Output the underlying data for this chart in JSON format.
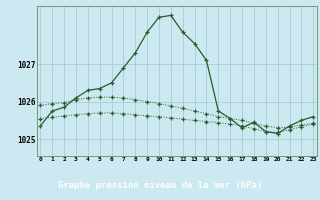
{
  "title": "Graphe pression niveau de la mer (hPa)",
  "background_color": "#cce8f0",
  "plot_bg_color": "#cce8f0",
  "grid_color": "#aaccd8",
  "line_color": "#2d5a2d",
  "footer_bg": "#3a6b3a",
  "footer_text_color": "#ffffff",
  "x_ticks": [
    0,
    1,
    2,
    3,
    4,
    5,
    6,
    7,
    8,
    9,
    10,
    11,
    12,
    13,
    14,
    15,
    16,
    17,
    18,
    19,
    20,
    21,
    22,
    23
  ],
  "y_ticks": [
    1025,
    1026,
    1027
  ],
  "ylim": [
    1024.55,
    1028.55
  ],
  "xlim": [
    -0.3,
    23.3
  ],
  "line1_x": [
    0,
    1,
    2,
    3,
    4,
    5,
    6,
    7,
    8,
    9,
    10,
    11,
    12,
    13,
    14,
    15,
    16,
    17,
    18,
    19,
    20,
    21,
    22,
    23
  ],
  "line1_y": [
    1025.35,
    1025.75,
    1025.85,
    1026.1,
    1026.3,
    1026.35,
    1026.5,
    1026.9,
    1027.3,
    1027.85,
    1028.25,
    1028.3,
    1027.85,
    1027.55,
    1027.1,
    1025.75,
    1025.55,
    1025.3,
    1025.45,
    1025.2,
    1025.15,
    1025.35,
    1025.5,
    1025.6
  ],
  "line2_x": [
    0,
    1,
    2,
    3,
    4,
    5,
    6,
    7,
    8,
    9,
    10,
    11,
    12,
    13,
    14,
    15,
    16,
    17,
    18,
    19,
    20,
    21,
    22,
    23
  ],
  "line2_y": [
    1025.9,
    1025.95,
    1025.97,
    1026.05,
    1026.1,
    1026.12,
    1026.12,
    1026.1,
    1026.05,
    1026.0,
    1025.95,
    1025.88,
    1025.82,
    1025.75,
    1025.68,
    1025.6,
    1025.55,
    1025.5,
    1025.42,
    1025.35,
    1025.3,
    1025.32,
    1025.38,
    1025.42
  ],
  "line3_x": [
    0,
    1,
    2,
    3,
    4,
    5,
    6,
    7,
    8,
    9,
    10,
    11,
    12,
    13,
    14,
    15,
    16,
    17,
    18,
    19,
    20,
    21,
    22,
    23
  ],
  "line3_y": [
    1025.55,
    1025.58,
    1025.62,
    1025.65,
    1025.68,
    1025.7,
    1025.7,
    1025.68,
    1025.65,
    1025.62,
    1025.6,
    1025.57,
    1025.53,
    1025.5,
    1025.47,
    1025.44,
    1025.4,
    1025.35,
    1025.28,
    1025.2,
    1025.18,
    1025.25,
    1025.33,
    1025.4
  ]
}
